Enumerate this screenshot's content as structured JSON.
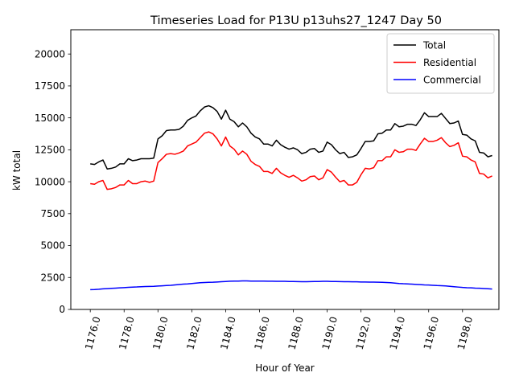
{
  "chart_data": {
    "type": "line",
    "title": "Timeseries Load for P13U p13uhs27_1247  Day 50",
    "xlabel": "Hour of Year",
    "ylabel": "kW total",
    "xlim": [
      1174.85,
      1200.15
    ],
    "ylim": [
      0,
      21900
    ],
    "xticks": [
      1176,
      1178,
      1180,
      1182,
      1184,
      1186,
      1188,
      1190,
      1192,
      1194,
      1196,
      1198
    ],
    "xtick_labels": [
      "1176.0",
      "1178.0",
      "1180.0",
      "1182.0",
      "1184.0",
      "1186.0",
      "1188.0",
      "1190.0",
      "1192.0",
      "1194.0",
      "1196.0",
      "1198.0"
    ],
    "yticks": [
      0,
      2500,
      5000,
      7500,
      10000,
      12500,
      15000,
      17500,
      20000
    ],
    "ytick_labels": [
      "0",
      "2500",
      "5000",
      "7500",
      "10000",
      "12500",
      "15000",
      "17500",
      "20000"
    ],
    "grid": false,
    "legend_position": "upper-right",
    "x_start": 1176,
    "x_step": 0.25,
    "series": [
      {
        "name": "Total",
        "color": "#000000",
        "values": [
          11400,
          11350,
          11550,
          11700,
          11000,
          11050,
          11150,
          11400,
          11400,
          11800,
          11650,
          11700,
          11800,
          11800,
          11800,
          11850,
          13350,
          13600,
          14000,
          14050,
          14050,
          14100,
          14350,
          14800,
          15000,
          15150,
          15550,
          15850,
          15950,
          15800,
          15500,
          14900,
          15600,
          14900,
          14700,
          14300,
          14600,
          14300,
          13800,
          13500,
          13350,
          12950,
          12950,
          12800,
          13250,
          12900,
          12700,
          12550,
          12650,
          12500,
          12200,
          12300,
          12550,
          12600,
          12300,
          12400,
          13100,
          12900,
          12500,
          12200,
          12300,
          11900,
          11950,
          12100,
          12600,
          13150,
          13150,
          13200,
          13750,
          13800,
          14050,
          14050,
          14550,
          14300,
          14350,
          14500,
          14500,
          14400,
          14850,
          15400,
          15100,
          15100,
          15100,
          15350,
          14950,
          14550,
          14600,
          14750,
          13700,
          13650,
          13350,
          13200,
          12300,
          12250,
          11950,
          12050
        ]
      },
      {
        "name": "Residential",
        "color": "#ff0000",
        "values": [
          9850,
          9800,
          10000,
          10100,
          9400,
          9450,
          9550,
          9750,
          9750,
          10100,
          9850,
          9850,
          10000,
          10050,
          9950,
          10050,
          11500,
          11800,
          12150,
          12200,
          12150,
          12250,
          12400,
          12800,
          12950,
          13100,
          13450,
          13800,
          13900,
          13750,
          13350,
          12800,
          13500,
          12800,
          12550,
          12100,
          12400,
          12150,
          11600,
          11350,
          11200,
          10800,
          10800,
          10650,
          11050,
          10700,
          10500,
          10350,
          10500,
          10300,
          10050,
          10150,
          10400,
          10450,
          10150,
          10300,
          10950,
          10750,
          10350,
          10000,
          10100,
          9750,
          9750,
          9950,
          10550,
          11050,
          11000,
          11100,
          11650,
          11650,
          11950,
          11950,
          12500,
          12300,
          12350,
          12550,
          12550,
          12450,
          12950,
          13400,
          13150,
          13150,
          13250,
          13450,
          13050,
          12750,
          12850,
          13050,
          12000,
          11950,
          11700,
          11550,
          10650,
          10600,
          10300,
          10450
        ]
      },
      {
        "name": "Commercial",
        "color": "#0000ff",
        "values": [
          1550,
          1560,
          1580,
          1610,
          1630,
          1650,
          1670,
          1690,
          1710,
          1730,
          1750,
          1760,
          1780,
          1790,
          1800,
          1810,
          1830,
          1850,
          1870,
          1890,
          1920,
          1950,
          1980,
          2000,
          2030,
          2060,
          2090,
          2110,
          2120,
          2130,
          2150,
          2170,
          2190,
          2210,
          2220,
          2220,
          2230,
          2230,
          2220,
          2220,
          2220,
          2220,
          2210,
          2210,
          2200,
          2200,
          2200,
          2190,
          2190,
          2180,
          2170,
          2170,
          2180,
          2190,
          2190,
          2200,
          2200,
          2190,
          2190,
          2180,
          2170,
          2170,
          2160,
          2160,
          2150,
          2150,
          2140,
          2140,
          2130,
          2120,
          2110,
          2090,
          2060,
          2030,
          2010,
          2000,
          1980,
          1960,
          1940,
          1920,
          1910,
          1890,
          1870,
          1860,
          1840,
          1810,
          1780,
          1750,
          1720,
          1700,
          1690,
          1670,
          1660,
          1640,
          1620,
          1600
        ]
      }
    ]
  }
}
